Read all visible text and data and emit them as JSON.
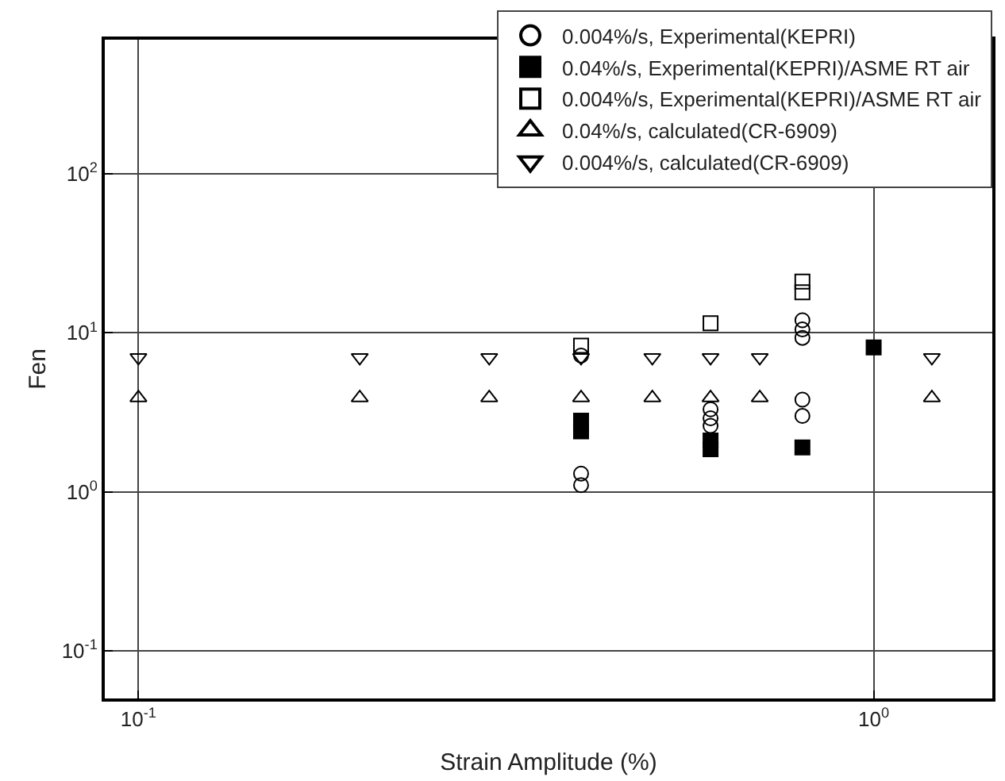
{
  "chart_data": {
    "type": "scatter",
    "xlabel": "Strain Amplitude (%)",
    "ylabel": "Fen",
    "log": "xy",
    "xlim": [
      0.09,
      1.45
    ],
    "xticks": [
      {
        "value": 0.1,
        "label": "10$^{-1}$"
      },
      {
        "value": 1,
        "label": "10$^{0}$"
      }
    ],
    "ylim": [
      0.05,
      700
    ],
    "yticks": [
      {
        "value": 0.1,
        "label": "10$^{-1}$"
      },
      {
        "value": 1,
        "label": "10$^{0}$"
      },
      {
        "value": 10,
        "label": "10$^{1}$"
      },
      {
        "value": 100,
        "label": "10$^{2}$"
      }
    ],
    "grid": true,
    "legend": "top right",
    "series": [
      {
        "name": "0.004%/s, Experimental(KEPRI)",
        "color": "#000000",
        "marker": "circle-open",
        "x": [
          0.4,
          0.4,
          0.4,
          0.6,
          0.6,
          0.6,
          0.8,
          0.8,
          0.8,
          0.8,
          0.8
        ],
        "values": [
          7.2,
          1.3,
          1.1,
          3.3,
          2.9,
          2.6,
          12,
          10.5,
          9.3,
          3.8,
          3.0
        ]
      },
      {
        "name": "0.04%/s, Experimental(KEPRI)/ASME RT air",
        "color": "#000000",
        "marker": "square",
        "x": [
          0.4,
          0.4,
          0.6,
          0.6,
          0.8,
          1.0
        ],
        "values": [
          2.8,
          2.4,
          2.1,
          1.85,
          1.9,
          8.1
        ]
      },
      {
        "name": "0.004%/s, Experimental(KEPRI)/ASME RT air",
        "color": "#000000",
        "marker": "square-open",
        "x": [
          0.4,
          0.6,
          0.8,
          0.8
        ],
        "values": [
          8.3,
          11.5,
          21,
          18
        ]
      },
      {
        "name": "0.04%/s, calculated(CR-6909)",
        "color": "#000000",
        "marker": "triangle-open",
        "x": [
          0.1,
          0.2,
          0.3,
          0.4,
          0.5,
          0.6,
          0.7,
          1.2
        ],
        "values": [
          3.9,
          3.9,
          3.9,
          3.9,
          3.9,
          3.9,
          3.9,
          3.9
        ]
      },
      {
        "name": "0.004%/s, calculated(CR-6909)",
        "color": "#000000",
        "marker": "triangle-down-open",
        "x": [
          0.1,
          0.2,
          0.3,
          0.4,
          0.5,
          0.6,
          0.7,
          1.2
        ],
        "values": [
          7,
          7,
          7,
          7,
          7,
          7,
          7,
          7
        ]
      }
    ]
  }
}
